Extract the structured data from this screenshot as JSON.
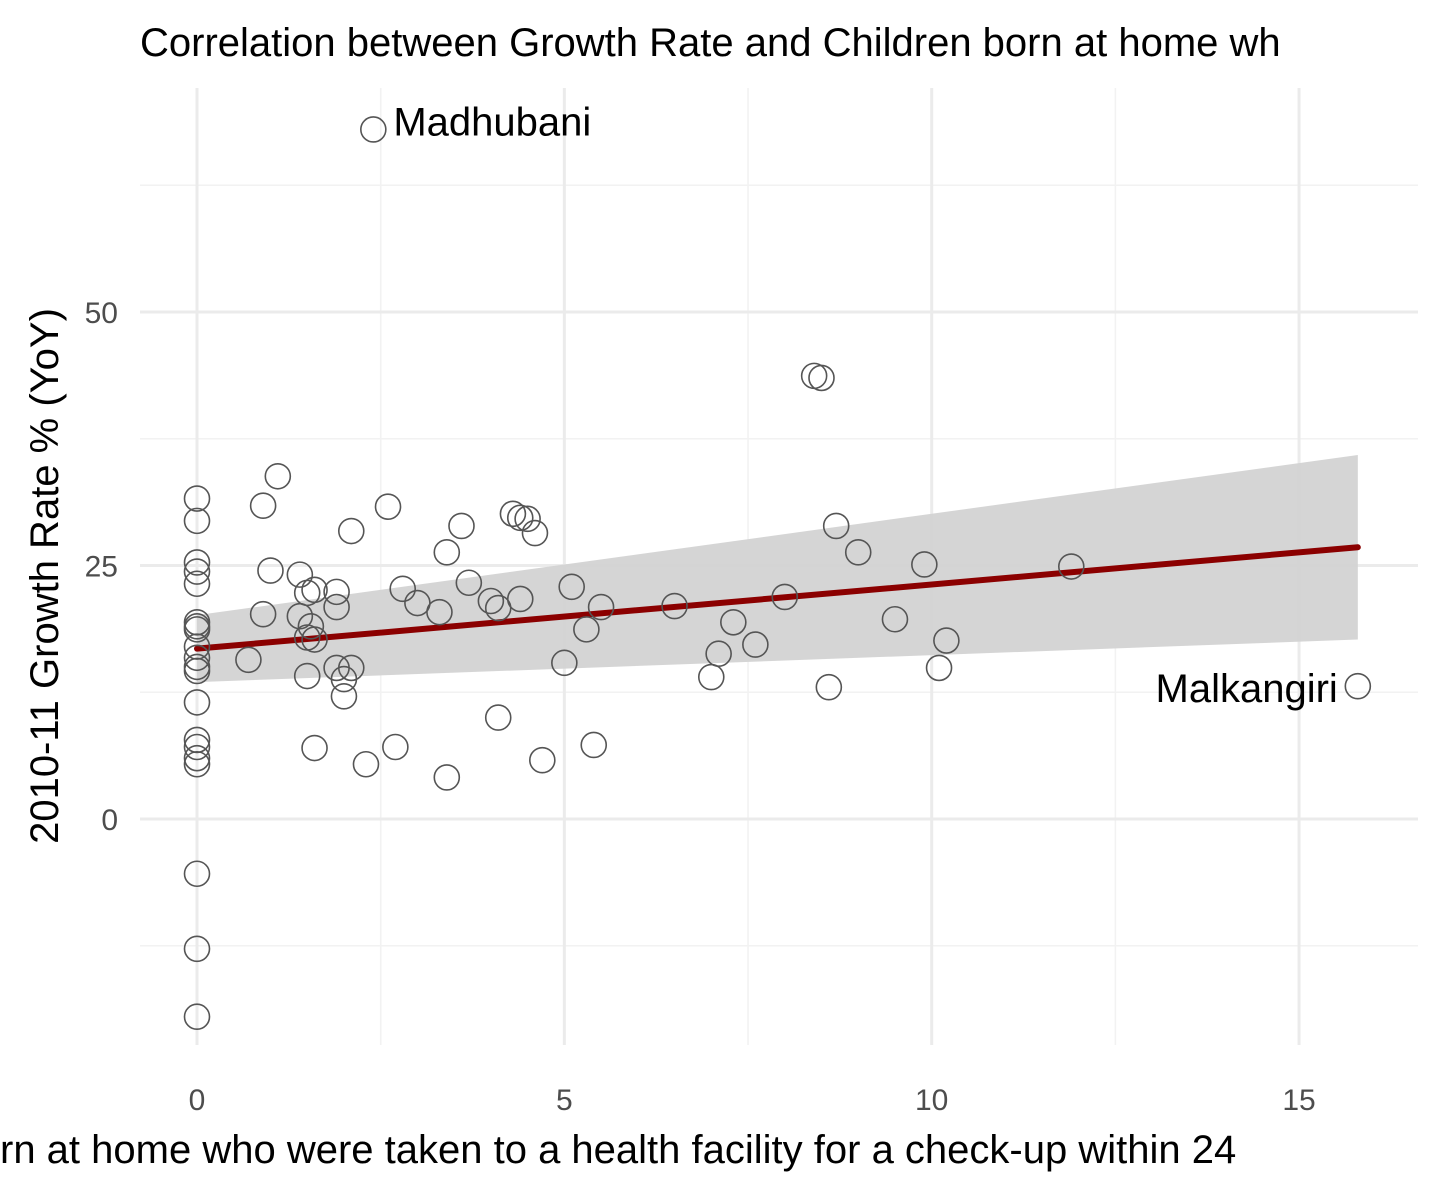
{
  "chart_data": {
    "type": "scatter",
    "title": "Correlation between Growth Rate and Children born at home wh",
    "xlabel": "rn at home who were taken to a health facility for a check-up within 24",
    "ylabel": "2010-11 Growth Rate % (YoY)",
    "xlim": [
      -1.5,
      16.5
    ],
    "ylim": [
      -24,
      72
    ],
    "x_ticks": [
      0,
      5,
      10,
      15
    ],
    "y_ticks": [
      0,
      25,
      50
    ],
    "x_tick_labels": [
      "0",
      "5",
      "10",
      "15"
    ],
    "y_tick_labels": [
      "0",
      "25",
      "50"
    ],
    "grid": true,
    "points": [
      {
        "x": 0,
        "y": 31.6
      },
      {
        "x": 0,
        "y": 29.4
      },
      {
        "x": 0,
        "y": 25.3
      },
      {
        "x": 0,
        "y": 24.4
      },
      {
        "x": 0,
        "y": 23.2
      },
      {
        "x": 0,
        "y": 19.4
      },
      {
        "x": 0,
        "y": 19.0
      },
      {
        "x": 0,
        "y": 18.7
      },
      {
        "x": 0,
        "y": 17.0
      },
      {
        "x": 0,
        "y": 15.9
      },
      {
        "x": 0,
        "y": 15.0
      },
      {
        "x": 0,
        "y": 14.6
      },
      {
        "x": 0,
        "y": 11.5
      },
      {
        "x": 0,
        "y": 7.8
      },
      {
        "x": 0,
        "y": 7.1
      },
      {
        "x": 0,
        "y": 6.0
      },
      {
        "x": 0,
        "y": 5.4
      },
      {
        "x": 0,
        "y": -5.4
      },
      {
        "x": 0,
        "y": -12.8
      },
      {
        "x": 0,
        "y": -19.5
      },
      {
        "x": 0.7,
        "y": 15.7
      },
      {
        "x": 0.9,
        "y": 30.9
      },
      {
        "x": 0.9,
        "y": 20.2
      },
      {
        "x": 1.0,
        "y": 24.5
      },
      {
        "x": 1.1,
        "y": 33.8
      },
      {
        "x": 1.4,
        "y": 24.1
      },
      {
        "x": 1.4,
        "y": 20.0
      },
      {
        "x": 1.5,
        "y": 22.3
      },
      {
        "x": 1.5,
        "y": 17.9
      },
      {
        "x": 1.5,
        "y": 14.1
      },
      {
        "x": 1.55,
        "y": 19.0
      },
      {
        "x": 1.6,
        "y": 17.7
      },
      {
        "x": 1.6,
        "y": 22.6
      },
      {
        "x": 1.6,
        "y": 7.0
      },
      {
        "x": 1.9,
        "y": 22.4
      },
      {
        "x": 1.9,
        "y": 20.9
      },
      {
        "x": 1.9,
        "y": 14.9
      },
      {
        "x": 2.0,
        "y": 13.8
      },
      {
        "x": 2.0,
        "y": 12.1
      },
      {
        "x": 2.1,
        "y": 28.4
      },
      {
        "x": 2.1,
        "y": 14.9
      },
      {
        "x": 2.3,
        "y": 5.4
      },
      {
        "x": 2.4,
        "y": 68.0
      },
      {
        "x": 2.6,
        "y": 30.8
      },
      {
        "x": 2.7,
        "y": 7.1
      },
      {
        "x": 2.8,
        "y": 22.7
      },
      {
        "x": 3.0,
        "y": 21.3
      },
      {
        "x": 3.3,
        "y": 20.4
      },
      {
        "x": 3.4,
        "y": 26.3
      },
      {
        "x": 3.4,
        "y": 4.1
      },
      {
        "x": 3.6,
        "y": 28.9
      },
      {
        "x": 3.7,
        "y": 23.3
      },
      {
        "x": 4.0,
        "y": 21.5
      },
      {
        "x": 4.1,
        "y": 20.8
      },
      {
        "x": 4.1,
        "y": 10.0
      },
      {
        "x": 4.3,
        "y": 30.1
      },
      {
        "x": 4.4,
        "y": 29.7
      },
      {
        "x": 4.4,
        "y": 21.7
      },
      {
        "x": 4.5,
        "y": 29.6
      },
      {
        "x": 4.6,
        "y": 28.2
      },
      {
        "x": 4.7,
        "y": 5.8
      },
      {
        "x": 5.0,
        "y": 15.4
      },
      {
        "x": 5.1,
        "y": 22.9
      },
      {
        "x": 5.3,
        "y": 18.7
      },
      {
        "x": 5.4,
        "y": 7.3
      },
      {
        "x": 5.5,
        "y": 20.9
      },
      {
        "x": 6.5,
        "y": 21.0
      },
      {
        "x": 7.0,
        "y": 14.0
      },
      {
        "x": 7.1,
        "y": 16.3
      },
      {
        "x": 7.3,
        "y": 19.4
      },
      {
        "x": 7.6,
        "y": 17.2
      },
      {
        "x": 8.0,
        "y": 21.9
      },
      {
        "x": 8.4,
        "y": 43.7
      },
      {
        "x": 8.5,
        "y": 43.5
      },
      {
        "x": 8.6,
        "y": 13.0
      },
      {
        "x": 8.7,
        "y": 28.9
      },
      {
        "x": 9.0,
        "y": 26.3
      },
      {
        "x": 9.5,
        "y": 19.7
      },
      {
        "x": 9.9,
        "y": 25.1
      },
      {
        "x": 10.1,
        "y": 14.9
      },
      {
        "x": 10.2,
        "y": 17.6
      },
      {
        "x": 11.9,
        "y": 24.9
      },
      {
        "x": 15.8,
        "y": 13.1
      }
    ],
    "annotations": [
      {
        "label": "Madhubani",
        "x": 2.4,
        "y": 68.0,
        "anchor": "start"
      },
      {
        "label": "Malkangiri",
        "x": 15.8,
        "y": 13.1,
        "anchor": "end"
      }
    ],
    "fit_line": {
      "x": [
        0,
        15.8
      ],
      "y": [
        16.8,
        26.8
      ],
      "color": "#8b0000"
    },
    "confidence_band": {
      "x": [
        0,
        15.8
      ],
      "upper": [
        20.1,
        35.9
      ],
      "lower": [
        13.5,
        17.7
      ],
      "color": "#d3d3d3"
    }
  }
}
